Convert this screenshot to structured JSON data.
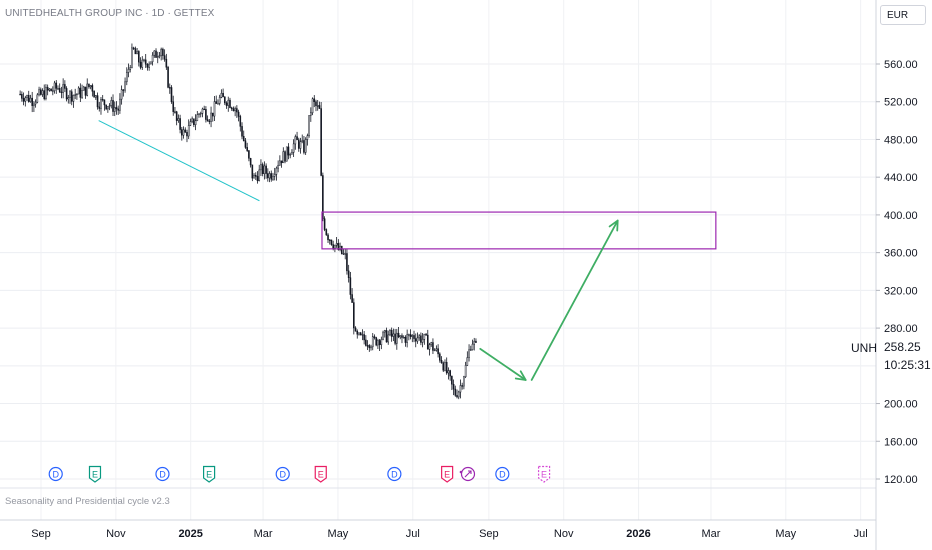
{
  "header": {
    "title": "UNITEDHEALTH GROUP INC · 1D · GETTEX",
    "currency": "EUR"
  },
  "last": {
    "symbol": "UNH",
    "price": "258.25",
    "countdown": "10:25:31"
  },
  "indicator_label": "Seasonality and Presidential cycle v2.3",
  "colors": {
    "candle": "#131722",
    "trendline": "#22c3c9",
    "zone": "#9c27b0",
    "arrow": "#3fae64",
    "dividend": "#2962ff",
    "earnings_past": "#089981",
    "earnings_recent": "#e91e63",
    "earnings_future": "#d64cd6",
    "split": "#9c27b0"
  },
  "chart_data": {
    "type": "candlestick",
    "y_ticks": [
      "560.00",
      "520.00",
      "480.00",
      "440.00",
      "400.00",
      "360.00",
      "320.00",
      "280.00",
      "200.00",
      "160.00",
      "120.00"
    ],
    "ylim": [
      120,
      560
    ],
    "x_ticks": [
      "Sep",
      "Nov",
      "2025",
      "Mar",
      "May",
      "Jul",
      "Sep",
      "Nov",
      "2026",
      "Mar",
      "May",
      "Jul"
    ],
    "x_tick_dates": [
      "2024-09-01",
      "2024-11-01",
      "2025-01-01",
      "2025-03-01",
      "2025-05-01",
      "2025-07-01",
      "2025-09-01",
      "2025-11-01",
      "2026-01-01",
      "2026-03-01",
      "2026-05-01",
      "2026-07-01"
    ],
    "price_path": [
      [
        "2024-08-15",
        528
      ],
      [
        "2024-08-25",
        522
      ],
      [
        "2024-09-05",
        530
      ],
      [
        "2024-09-15",
        535
      ],
      [
        "2024-09-25",
        527
      ],
      [
        "2024-10-05",
        530
      ],
      [
        "2024-10-12",
        538
      ],
      [
        "2024-10-17",
        520
      ],
      [
        "2024-10-25",
        518
      ],
      [
        "2024-11-03",
        512
      ],
      [
        "2024-11-10",
        548
      ],
      [
        "2024-11-15",
        575
      ],
      [
        "2024-11-22",
        558
      ],
      [
        "2024-12-01",
        566
      ],
      [
        "2024-12-08",
        578
      ],
      [
        "2024-12-14",
        538
      ],
      [
        "2024-12-20",
        500
      ],
      [
        "2024-12-27",
        485
      ],
      [
        "2025-01-03",
        498
      ],
      [
        "2025-01-10",
        512
      ],
      [
        "2025-01-17",
        504
      ],
      [
        "2025-01-24",
        523
      ],
      [
        "2025-01-31",
        522
      ],
      [
        "2025-02-07",
        513
      ],
      [
        "2025-02-14",
        475
      ],
      [
        "2025-02-21",
        438
      ],
      [
        "2025-02-28",
        448
      ],
      [
        "2025-03-07",
        442
      ],
      [
        "2025-03-14",
        458
      ],
      [
        "2025-03-21",
        466
      ],
      [
        "2025-03-28",
        478
      ],
      [
        "2025-04-04",
        470
      ],
      [
        "2025-04-10",
        520
      ],
      [
        "2025-04-16",
        510
      ],
      [
        "2025-04-18",
        400
      ],
      [
        "2025-04-22",
        380
      ],
      [
        "2025-04-30",
        365
      ],
      [
        "2025-05-07",
        355
      ],
      [
        "2025-05-13",
        300
      ],
      [
        "2025-05-15",
        270
      ],
      [
        "2025-05-22",
        268
      ],
      [
        "2025-05-29",
        265
      ],
      [
        "2025-06-05",
        270
      ],
      [
        "2025-06-12",
        272
      ],
      [
        "2025-06-19",
        268
      ],
      [
        "2025-06-26",
        270
      ],
      [
        "2025-07-03",
        272
      ],
      [
        "2025-07-10",
        268
      ],
      [
        "2025-07-17",
        260
      ],
      [
        "2025-07-24",
        248
      ],
      [
        "2025-07-31",
        225
      ],
      [
        "2025-08-04",
        210
      ],
      [
        "2025-08-08",
        215
      ],
      [
        "2025-08-13",
        238
      ],
      [
        "2025-08-18",
        268
      ],
      [
        "2025-08-22",
        258
      ]
    ],
    "trendline": {
      "from": [
        "2024-10-18",
        500
      ],
      "to": [
        "2025-02-26",
        415
      ]
    },
    "zone": {
      "x_from": "2025-04-18",
      "x_to": "2026-03-05",
      "y_from": 364,
      "y_to": 403
    },
    "projection": [
      [
        "2025-08-25",
        258
      ],
      [
        "2025-10-01",
        225
      ],
      [
        "2025-12-15",
        394
      ]
    ],
    "events": [
      {
        "label": "D",
        "kind": "dividend",
        "date": "2024-09-13"
      },
      {
        "label": "E",
        "kind": "earnings_past",
        "date": "2024-10-15"
      },
      {
        "label": "D",
        "kind": "dividend",
        "date": "2024-12-09"
      },
      {
        "label": "E",
        "kind": "earnings_past",
        "date": "2025-01-16"
      },
      {
        "label": "D",
        "kind": "dividend",
        "date": "2025-03-17"
      },
      {
        "label": "E",
        "kind": "earnings_recent",
        "date": "2025-04-17"
      },
      {
        "label": "D",
        "kind": "dividend",
        "date": "2025-06-16"
      },
      {
        "label": "E",
        "kind": "earnings_recent",
        "date": "2025-07-29"
      },
      {
        "label": "",
        "kind": "split",
        "date": "2025-08-15"
      },
      {
        "label": "D",
        "kind": "dividend",
        "date": "2025-09-12"
      },
      {
        "label": "E",
        "kind": "earnings_future",
        "date": "2025-10-16"
      }
    ]
  }
}
